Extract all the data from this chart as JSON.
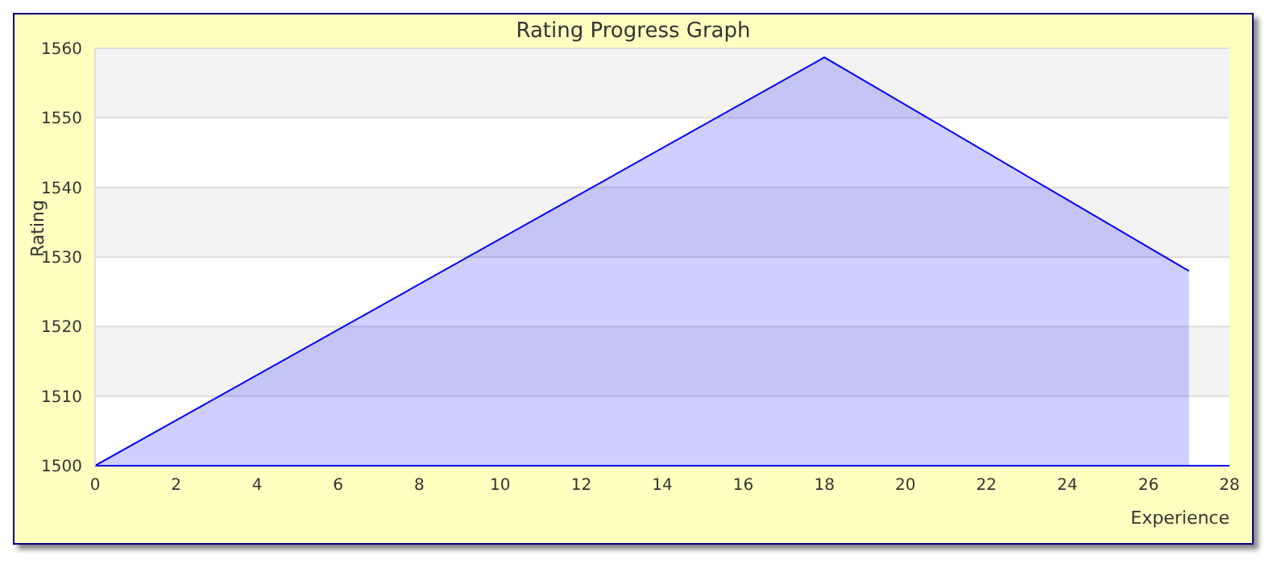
{
  "chart_data": {
    "type": "area",
    "title": "Rating Progress Graph",
    "xlabel": "Experience",
    "ylabel": "Rating",
    "x": [
      0,
      18,
      27
    ],
    "series": [
      {
        "color": "#0000ff",
        "values": [
          1500,
          1558.7,
          1528
        ]
      }
    ],
    "xlim": [
      0,
      28
    ],
    "xticks": [
      0,
      2,
      4,
      6,
      8,
      10,
      12,
      14,
      16,
      18,
      20,
      22,
      24,
      26,
      28
    ],
    "ylim": [
      1500,
      1560
    ],
    "yticks": [
      1500,
      1510,
      1520,
      1530,
      1540,
      1550,
      1560
    ],
    "grid": "y",
    "legend": false,
    "marker": "none",
    "line_style": "solid"
  }
}
